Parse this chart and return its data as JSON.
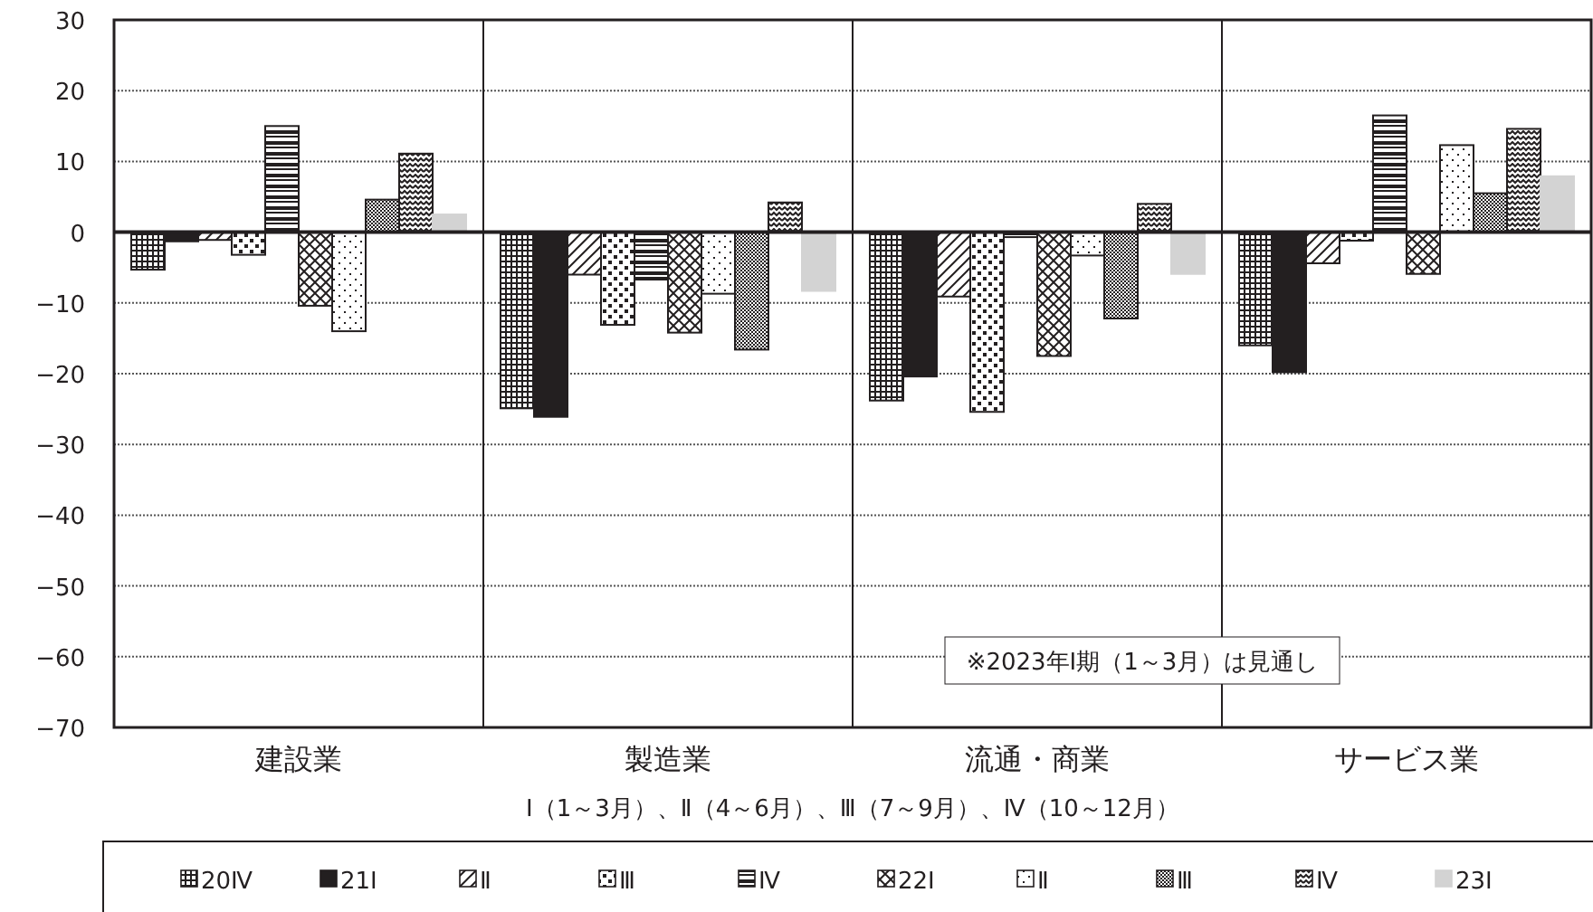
{
  "chart_data": {
    "type": "bar",
    "categories": [
      "建設業",
      "製造業",
      "流通・商業",
      "サービス業"
    ],
    "xlabel": "Ⅰ（1～3月）、Ⅱ（4～6月）、Ⅲ（7～9月）、Ⅳ（10～12月）",
    "ylim": [
      -70,
      30
    ],
    "yticks": [
      -70,
      -60,
      -50,
      -40,
      -30,
      -20,
      -10,
      0,
      10,
      20,
      30
    ],
    "grid": "y",
    "legend": "bottom",
    "annotations": [
      "※2023年Ⅰ期（1～3月）は見通し"
    ],
    "series": [
      {
        "name": "20Ⅳ",
        "color": "#231f20",
        "values": [
          -5.3,
          -24.9,
          -23.8,
          -16.0
        ]
      },
      {
        "name": "21Ⅰ",
        "color": "#231f20",
        "values": [
          -1.3,
          -26.1,
          -20.4,
          -19.8
        ]
      },
      {
        "name": "Ⅱ",
        "color": "#231f20",
        "values": [
          -1.1,
          -6.0,
          -9.1,
          -4.4
        ]
      },
      {
        "name": "Ⅲ",
        "color": "#231f20",
        "values": [
          -3.2,
          -13.1,
          -25.4,
          -1.2
        ]
      },
      {
        "name": "Ⅳ",
        "color": "#231f20",
        "values": [
          15.0,
          -6.7,
          -0.7,
          16.5
        ]
      },
      {
        "name": "22Ⅰ",
        "color": "#231f20",
        "values": [
          -10.4,
          -14.2,
          -17.5,
          -5.9
        ]
      },
      {
        "name": "Ⅱ",
        "color": "#231f20",
        "values": [
          -14.0,
          -8.7,
          -3.3,
          12.3
        ]
      },
      {
        "name": "Ⅲ",
        "color": "#231f20",
        "values": [
          4.6,
          -16.6,
          -12.2,
          5.5
        ]
      },
      {
        "name": "Ⅳ",
        "color": "#231f20",
        "values": [
          11.1,
          4.2,
          4.0,
          14.6
        ]
      },
      {
        "name": "23Ⅰ",
        "color": "#d3d3d3",
        "values": [
          2.5,
          -8.3,
          -5.9,
          7.9
        ]
      }
    ]
  }
}
